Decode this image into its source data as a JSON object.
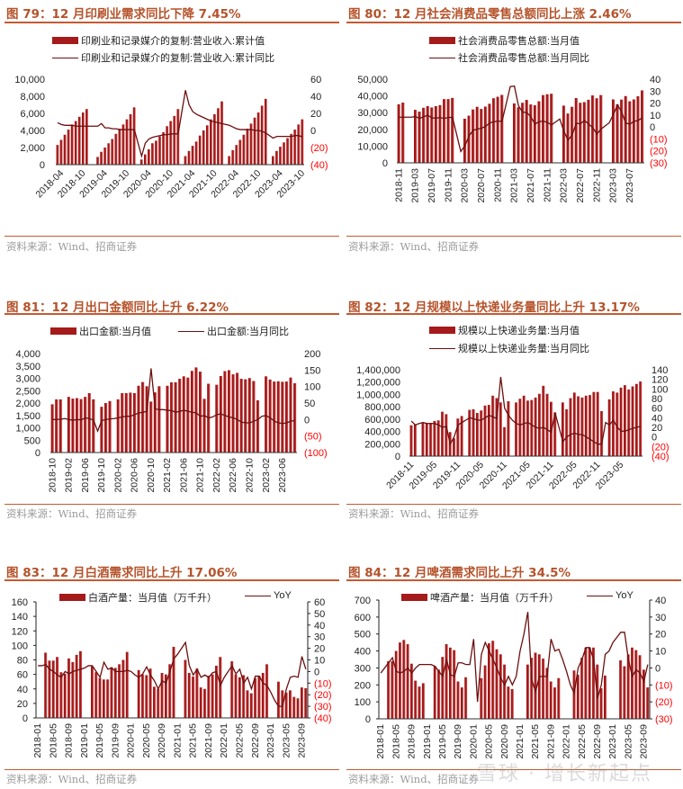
{
  "source": "资料来源：Wind、招商证券",
  "watermark": "雪球 · 增长新起点",
  "colors": {
    "bar": "#a51a1a",
    "line": "#6b0f0f",
    "title": "#b5532b",
    "negative_label": "#ff0000"
  },
  "chart_data": [
    {
      "type": "bar+line",
      "title": "图 79：12 月印刷业需求同比下降 7.45%",
      "legend": [
        "印刷业和记录媒介的复制:营业收入:累计值",
        "印刷业和记录媒介的复制:营业收入:累计同比"
      ],
      "x_start": "2018-03",
      "x_end": "2023-10",
      "x_tick_labels": [
        "2018-04",
        "2018-10",
        "2019-04",
        "2019-10",
        "2020-04",
        "2020-10",
        "2021-04",
        "2021-10",
        "2022-04",
        "2022-10",
        "2023-04",
        "2023-10"
      ],
      "ylim": [
        0,
        10000
      ],
      "y_tick_labels": [
        "0",
        "2,000",
        "4,000",
        "6,000",
        "8,000",
        "10,000"
      ],
      "y2lim": [
        -40,
        60
      ],
      "y2_tick_labels": [
        "(40)",
        "(20)",
        "0",
        "20",
        "40",
        "60"
      ],
      "bars": [
        2300,
        2900,
        3500,
        4100,
        4700,
        5100,
        5600,
        6100,
        6500,
        null,
        null,
        900,
        1500,
        2000,
        2500,
        3000,
        3600,
        4200,
        4700,
        5300,
        5900,
        6700,
        null,
        600,
        1200,
        1800,
        2500,
        2800,
        3300,
        3800,
        4500,
        5100,
        5700,
        6500,
        null,
        1000,
        1600,
        2200,
        2700,
        3400,
        4000,
        4600,
        5300,
        5900,
        6600,
        7400,
        null,
        1000,
        1700,
        2300,
        2900,
        3500,
        4200,
        4800,
        5500,
        6100,
        6900,
        7700,
        null,
        1000,
        1600,
        2100,
        2600,
        3100,
        3600,
        4100,
        4700,
        5300
      ],
      "line": [
        9,
        7,
        6,
        6,
        6,
        5,
        5,
        5,
        5,
        null,
        null,
        5,
        8,
        3,
        3,
        2,
        2,
        1,
        1,
        1,
        1,
        1,
        null,
        -30,
        -15,
        -10,
        -8,
        -7,
        -6,
        -5,
        -5,
        -4,
        -4,
        -4,
        null,
        47,
        30,
        22,
        19,
        17,
        15,
        13,
        11,
        10,
        9,
        8,
        null,
        6,
        4,
        2,
        1,
        1,
        1,
        1,
        0,
        0,
        -1,
        -3,
        null,
        -9,
        -7,
        -7,
        -7,
        -7,
        -7,
        -6,
        -6,
        -7.45
      ]
    },
    {
      "type": "bar+line",
      "title": "图 80：12 月社会消费品零售总额同比上涨 2.46%",
      "legend": [
        "社会消费品零售总额:当月值",
        "社会消费品零售总额:当月同比"
      ],
      "x_start": "2018-11",
      "x_end": "2023-10",
      "x_tick_labels": [
        "2018-11",
        "2019-03",
        "2019-07",
        "2019-11",
        "2020-03",
        "2020-07",
        "2020-11",
        "2021-03",
        "2021-07",
        "2021-11",
        "2022-03",
        "2022-07",
        "2022-11",
        "2023-03",
        "2023-07"
      ],
      "ylim": [
        0,
        50000
      ],
      "y_tick_labels": [
        "0",
        "10,000",
        "20,000",
        "30,000",
        "40,000",
        "50,000"
      ],
      "y2lim": [
        -30,
        40
      ],
      "y2_tick_labels": [
        "(30)",
        "(20)",
        "(10)",
        "0",
        "10",
        "20",
        "30",
        "40"
      ],
      "bars": [
        35000,
        36000,
        null,
        null,
        31700,
        30600,
        32900,
        33900,
        33100,
        33900,
        34500,
        38100,
        38100,
        38800,
        null,
        null,
        26400,
        28200,
        31900,
        33500,
        32200,
        33600,
        35300,
        38600,
        39500,
        40600,
        null,
        null,
        35500,
        33200,
        35900,
        37600,
        34900,
        34400,
        36800,
        40500,
        41000,
        41300,
        null,
        null,
        34200,
        29500,
        33500,
        38700,
        35900,
        36300,
        37700,
        40300,
        38600,
        40500,
        null,
        null,
        37900,
        35000,
        37800,
        39900,
        36800,
        37900,
        39800,
        43300
      ],
      "line": [
        8.1,
        8.2,
        null,
        8.2,
        8.7,
        7.2,
        8.6,
        9.8,
        7.6,
        7.5,
        7.8,
        7.2,
        8.0,
        8.0,
        null,
        -20.5,
        -15.8,
        -7.5,
        -2.8,
        -1.8,
        -1.1,
        0.5,
        3.3,
        4.3,
        5.0,
        4.6,
        null,
        33.8,
        34.2,
        17.7,
        12.4,
        12.1,
        8.5,
        2.5,
        4.4,
        4.9,
        3.9,
        1.7,
        null,
        6.7,
        -3.5,
        -11.1,
        -6.7,
        3.1,
        2.7,
        5.4,
        2.5,
        -0.5,
        -5.9,
        -1.8,
        null,
        3.5,
        10.6,
        18.4,
        12.7,
        3.1,
        2.5,
        4.6,
        5.5,
        7.6
      ]
    },
    {
      "type": "bar+line",
      "title": "图 81：12 月出口金额同比上升 6.22%",
      "legend": [
        "出口金额:当月值",
        "出口金额:当月同比"
      ],
      "x_start": "2018-10",
      "x_end": "2023-09",
      "x_tick_labels": [
        "2018-10",
        "2019-02",
        "2019-06",
        "2019-10",
        "2020-02",
        "2020-06",
        "2020-10",
        "2021-02",
        "2021-06",
        "2021-10",
        "2022-02",
        "2022-06",
        "2022-10",
        "2023-02",
        "2023-06"
      ],
      "ylim": [
        0,
        4000
      ],
      "y_tick_labels": [
        "0",
        "500",
        "1,000",
        "1,500",
        "2,000",
        "2,500",
        "3,000",
        "3,500",
        "4,000"
      ],
      "y2lim": [
        -100,
        200
      ],
      "y2_tick_labels": [
        "(100)",
        "(50)",
        "0",
        "50",
        "100",
        "150",
        "200"
      ],
      "bars": [
        1950,
        2150,
        2150,
        null,
        2250,
        2180,
        2200,
        2160,
        2250,
        2400,
        2150,
        null,
        1850,
        2000,
        2080,
        null,
        2150,
        2400,
        2400,
        2420,
        2400,
        2700,
        2850,
        2680,
        2060,
        2430,
        2680,
        null,
        2700,
        2840,
        2840,
        2980,
        3080,
        3030,
        3300,
        3440,
        3270,
        2170,
        2780,
        null,
        2740,
        3090,
        3290,
        3330,
        3160,
        3220,
        2980,
        2960,
        3010,
        2890,
        2110,
        null,
        3080,
        2950,
        2870,
        2880,
        2860,
        2870,
        3030,
        2800
      ],
      "line": [
        0,
        0,
        1,
        3,
        0,
        -2,
        0,
        -1,
        5,
        3,
        -2,
        -35,
        -3,
        0,
        2,
        3,
        5,
        8,
        10,
        10,
        15,
        20,
        22,
        25,
        155,
        32,
        30,
        30,
        28,
        27,
        22,
        25,
        28,
        25,
        22,
        20,
        10,
        12,
        5,
        8,
        15,
        17,
        12,
        8,
        5,
        0,
        -8,
        -10,
        -10,
        -5,
        0,
        10,
        12,
        5,
        -5,
        -10,
        -12,
        -10,
        -5,
        -3
      ]
    },
    {
      "type": "bar+line",
      "title": "图 82：12 月规模以上快递业务量同比上升 13.17%",
      "legend": [
        "规模以上快递业务量:当月值",
        "规模以上快递业务量:当月同比"
      ],
      "x_start": "2018-11",
      "x_end": "2023-10",
      "x_tick_labels": [
        "2018-11",
        "2019-05",
        "2019-11",
        "2020-05",
        "2020-11",
        "2021-05",
        "2021-11",
        "2022-05",
        "2022-11",
        "2023-05"
      ],
      "ylim": [
        0,
        1400000
      ],
      "y_tick_labels": [
        "0",
        "200,000",
        "400,000",
        "600,000",
        "800,000",
        "1,000,000",
        "1,200,000",
        "1,400,000"
      ],
      "y2lim": [
        -40,
        140
      ],
      "y2_tick_labels": [
        "(40)",
        "(20)",
        "0",
        "20",
        "40",
        "60",
        "80",
        "100",
        "120",
        "140"
      ],
      "bars": [
        500000,
        510000,
        null,
        550000,
        540000,
        540000,
        570000,
        580000,
        720000,
        680000,
        390000,
        290000,
        610000,
        650000,
        null,
        750000,
        760000,
        700000,
        740000,
        820000,
        830000,
        980000,
        940000,
        870000,
        470000,
        890000,
        null,
        870000,
        930000,
        980000,
        900000,
        910000,
        950000,
        1010000,
        1140000,
        1010000,
        880000,
        710000,
        null,
        870000,
        760000,
        940000,
        1030000,
        970000,
        950000,
        980000,
        990000,
        1040000,
        1040000,
        730000,
        null,
        920000,
        1050000,
        1030000,
        1110000,
        1150000,
        1080000,
        1130000,
        1170000,
        1210000
      ],
      "line": [
        33,
        25,
        28,
        30,
        28,
        28,
        28,
        25,
        20,
        22,
        -15,
        0,
        25,
        30,
        35,
        40,
        38,
        35,
        35,
        40,
        45,
        42,
        38,
        125,
        60,
        45,
        35,
        28,
        25,
        28,
        30,
        25,
        20,
        18,
        20,
        15,
        10,
        50,
        20,
        -10,
        0,
        5,
        8,
        5,
        5,
        0,
        -5,
        -10,
        -15,
        -15,
        30,
        25,
        35,
        20,
        12,
        12,
        15,
        18,
        20,
        22
      ]
    },
    {
      "type": "bar+line",
      "title": "图 83：12 月白酒需求同比上升 17.06%",
      "legend": [
        "白酒产量：当月值（万千升）",
        "YoY"
      ],
      "x_start": "2018-01",
      "x_end": "2023-10",
      "x_tick_labels": [
        "2018-01",
        "2018-05",
        "2018-09",
        "2019-01",
        "2019-05",
        "2019-09",
        "2020-01",
        "2020-05",
        "2020-09",
        "2021-01",
        "2021-05",
        "2021-09",
        "2022-01",
        "2022-05",
        "2022-09",
        "2023-01",
        "2023-05",
        "2023-09"
      ],
      "ylim": [
        0,
        160
      ],
      "y_tick_labels": [
        "0",
        "20",
        "40",
        "60",
        "80",
        "100",
        "120",
        "140",
        "160"
      ],
      "y2lim": [
        -40,
        60
      ],
      "y2_tick_labels": [
        "(40)",
        "(30)",
        "(20)",
        "(10)",
        "0",
        "10",
        "20",
        "30",
        "40",
        "50",
        "60"
      ],
      "bars": [
        null,
        null,
        90,
        79,
        79,
        84,
        63,
        61,
        82,
        77,
        87,
        92,
        null,
        null,
        71,
        63,
        55,
        53,
        53,
        70,
        69,
        74,
        80,
        91,
        null,
        null,
        66,
        60,
        59,
        68,
        43,
        40,
        62,
        60,
        74,
        98,
        null,
        null,
        80,
        62,
        57,
        68,
        42,
        40,
        58,
        60,
        72,
        84,
        null,
        null,
        78,
        60,
        56,
        59,
        38,
        34,
        55,
        58,
        62,
        74,
        null,
        null,
        50,
        38,
        35,
        38,
        29,
        27,
        42,
        41
      ],
      "line": [
        5,
        5,
        6,
        2,
        0,
        -3,
        -5,
        0,
        -2,
        0,
        1,
        2,
        3,
        5,
        5,
        0,
        -5,
        8,
        2,
        3,
        0,
        0,
        0,
        1,
        0,
        -3,
        -5,
        -2,
        4,
        -3,
        -8,
        -15,
        -8,
        -10,
        0,
        11,
        15,
        20,
        25,
        5,
        -3,
        2,
        -5,
        -3,
        -5,
        -1,
        0,
        -12,
        -5,
        0,
        5,
        -2,
        2,
        -10,
        -5,
        -15,
        -4,
        -4,
        -10,
        -12,
        -18,
        -25,
        -30,
        -30,
        -15,
        -5,
        -4,
        -5,
        13,
        2
      ]
    },
    {
      "type": "bar+line",
      "title": "图 84：12 月啤酒需求同比上升 34.5%",
      "legend": [
        "啤酒产量：当月值（万千升）",
        "YoY"
      ],
      "x_start": "2018-01",
      "x_end": "2023-10",
      "x_tick_labels": [
        "2018-01",
        "2018-05",
        "2018-09",
        "2019-01",
        "2019-05",
        "2019-09",
        "2020-01",
        "2020-05",
        "2020-09",
        "2021-01",
        "2021-05",
        "2021-09",
        "2022-01",
        "2022-05",
        "2022-09",
        "2023-01",
        "2023-05",
        "2023-09"
      ],
      "ylim": [
        0,
        700
      ],
      "y_tick_labels": [
        "0",
        "100",
        "200",
        "300",
        "400",
        "500",
        "600",
        "700"
      ],
      "y2lim": [
        -30,
        40
      ],
      "y2_tick_labels": [
        "(30)",
        "(20)",
        "(10)",
        "0",
        "10",
        "20",
        "30",
        "40"
      ],
      "bars": [
        null,
        null,
        340,
        340,
        400,
        450,
        465,
        440,
        325,
        225,
        190,
        210,
        null,
        null,
        310,
        290,
        365,
        440,
        420,
        405,
        220,
        185,
        245,
        null,
        null,
        null,
        240,
        315,
        445,
        460,
        410,
        380,
        320,
        190,
        175,
        null,
        null,
        null,
        320,
        360,
        390,
        380,
        355,
        300,
        220,
        185,
        240,
        null,
        null,
        null,
        285,
        260,
        360,
        420,
        420,
        420,
        320,
        180,
        255,
        null,
        null,
        null,
        345,
        310,
        380,
        420,
        405,
        375,
        290,
        185
      ],
      "line": [
        -3,
        0,
        3,
        6,
        -2,
        -3,
        -2,
        0,
        -3,
        0,
        2,
        2,
        2,
        2,
        1,
        -2,
        -5,
        5,
        -4,
        -5,
        3,
        3,
        2,
        2,
        17,
        -20,
        8,
        15,
        10,
        5,
        0,
        -6,
        -10,
        -5,
        -10,
        -5,
        10,
        20,
        33,
        -7,
        -14,
        -5,
        -5,
        -5,
        17,
        10,
        11,
        5,
        -2,
        -10,
        -15,
        0,
        5,
        12,
        12,
        5,
        -18,
        -10,
        8,
        10,
        15,
        18,
        21,
        21,
        5,
        -5,
        -1,
        -3,
        -8,
        2
      ]
    }
  ]
}
